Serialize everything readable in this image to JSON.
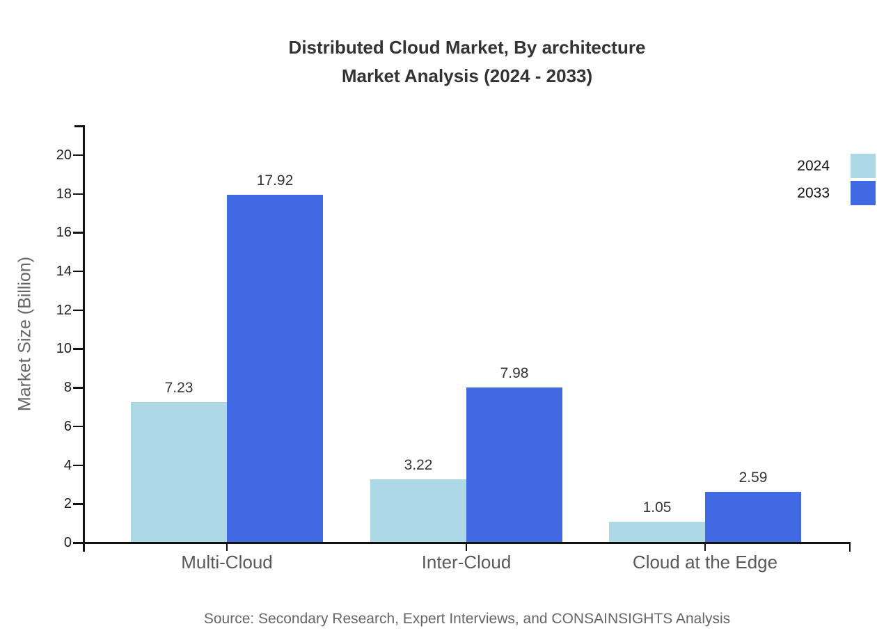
{
  "title": {
    "line1": "Distributed Cloud Market, By architecture",
    "line2": "Market Analysis (2024 - 2033)"
  },
  "source": "Source: Secondary Research, Expert Interviews, and CONSAINSIGHTS Analysis",
  "chart_data": {
    "type": "bar",
    "title": "Distributed Cloud Market, By architecture Market Analysis (2024 - 2033)",
    "categories": [
      "Multi-Cloud",
      "Inter-Cloud",
      "Cloud at the Edge"
    ],
    "series": [
      {
        "name": "2024",
        "color": "#ADD8E6",
        "values": [
          7.23,
          3.22,
          1.05
        ]
      },
      {
        "name": "2033",
        "color": "#4169E1",
        "values": [
          17.92,
          7.98,
          2.59
        ]
      }
    ],
    "xlabel": "",
    "ylabel": "Market Size (Billion)",
    "ylim": [
      0,
      20
    ],
    "y_ticks": [
      0,
      2,
      4,
      6,
      8,
      10,
      12,
      14,
      16,
      18,
      20
    ],
    "grid": false,
    "legend_position": "top-right",
    "value_labels": true,
    "axis_color": "#111111"
  }
}
